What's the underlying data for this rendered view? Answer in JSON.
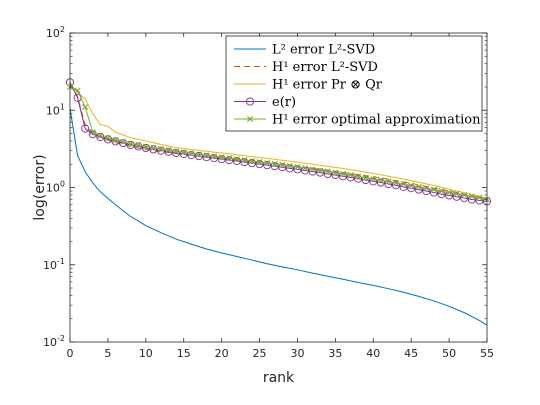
{
  "chart_data": {
    "type": "line",
    "xlabel": "rank",
    "ylabel": "log(error)",
    "xlim": [
      0,
      55
    ],
    "ylim": [
      0.01,
      100
    ],
    "yscale": "log",
    "grid": false,
    "legend_position": "top-right",
    "x_ticks": [
      "0",
      "5",
      "10",
      "15",
      "20",
      "25",
      "30",
      "35",
      "40",
      "45",
      "50",
      "55"
    ],
    "y_ticks": [
      {
        "base": "10",
        "exp": "-2"
      },
      {
        "base": "10",
        "exp": "-1"
      },
      {
        "base": "10",
        "exp": "0"
      },
      {
        "base": "10",
        "exp": "1"
      },
      {
        "base": "10",
        "exp": "2"
      }
    ],
    "series": [
      {
        "name": "L² error L²-SVD",
        "color": "#0072bd",
        "style": "solid",
        "marker": "none",
        "x": [
          0,
          1,
          2,
          3,
          4,
          5,
          6,
          7,
          8,
          9,
          10,
          12,
          14,
          16,
          18,
          20,
          22,
          24,
          26,
          28,
          30,
          32,
          34,
          36,
          38,
          40,
          42,
          44,
          46,
          48,
          50,
          52,
          54,
          55
        ],
        "y": [
          10.5,
          2.6,
          1.6,
          1.15,
          0.88,
          0.72,
          0.6,
          0.5,
          0.42,
          0.37,
          0.32,
          0.26,
          0.215,
          0.185,
          0.16,
          0.142,
          0.128,
          0.115,
          0.103,
          0.094,
          0.086,
          0.078,
          0.071,
          0.065,
          0.059,
          0.054,
          0.049,
          0.044,
          0.039,
          0.034,
          0.029,
          0.024,
          0.019,
          0.0165
        ]
      },
      {
        "name": "H¹ error L²-SVD",
        "color": "#d95319",
        "style": "dashed",
        "marker": "none",
        "x": [
          0,
          1,
          2,
          3,
          4,
          5,
          6,
          7,
          8,
          9,
          10,
          12,
          14,
          16,
          18,
          20,
          22,
          24,
          26,
          28,
          30,
          32,
          34,
          36,
          38,
          40,
          42,
          44,
          46,
          48,
          50,
          52,
          54,
          55
        ],
        "y": [
          22,
          15,
          6.5,
          5.0,
          4.5,
          4.1,
          3.8,
          3.6,
          3.4,
          3.25,
          3.1,
          2.9,
          2.75,
          2.62,
          2.5,
          2.38,
          2.27,
          2.17,
          2.07,
          1.97,
          1.87,
          1.77,
          1.67,
          1.57,
          1.47,
          1.38,
          1.28,
          1.18,
          1.08,
          0.98,
          0.9,
          0.82,
          0.74,
          0.7
        ]
      },
      {
        "name": "H¹ error Pr ⊗ Qr",
        "color": "#edb120",
        "style": "solid",
        "marker": "none",
        "x": [
          0,
          1,
          2,
          3,
          4,
          5,
          6,
          7,
          8,
          9,
          10,
          12,
          14,
          16,
          18,
          20,
          22,
          24,
          26,
          28,
          30,
          32,
          34,
          36,
          38,
          40,
          42,
          44,
          46,
          48,
          50,
          52,
          54,
          55
        ],
        "y": [
          22,
          17,
          14,
          9.0,
          6.5,
          6.2,
          5.2,
          4.8,
          4.4,
          4.2,
          4.0,
          3.6,
          3.3,
          3.1,
          2.95,
          2.8,
          2.65,
          2.5,
          2.38,
          2.25,
          2.12,
          2.0,
          1.88,
          1.76,
          1.64,
          1.52,
          1.4,
          1.29,
          1.17,
          1.06,
          0.95,
          0.86,
          0.77,
          0.72
        ]
      },
      {
        "name": "e(r)",
        "color": "#7e2f8e",
        "style": "solid",
        "marker": "circle",
        "x": [
          0,
          1,
          2,
          3,
          4,
          5,
          6,
          7,
          8,
          9,
          10,
          11,
          12,
          13,
          14,
          15,
          16,
          17,
          18,
          19,
          20,
          21,
          22,
          23,
          24,
          25,
          26,
          27,
          28,
          29,
          30,
          31,
          32,
          33,
          34,
          35,
          36,
          37,
          38,
          39,
          40,
          41,
          42,
          43,
          44,
          45,
          46,
          47,
          48,
          49,
          50,
          51,
          52,
          53,
          54,
          55
        ],
        "y": [
          23,
          14.5,
          5.8,
          4.9,
          4.5,
          4.2,
          3.95,
          3.75,
          3.55,
          3.4,
          3.25,
          3.12,
          3.0,
          2.9,
          2.8,
          2.72,
          2.63,
          2.55,
          2.47,
          2.4,
          2.33,
          2.26,
          2.2,
          2.13,
          2.07,
          2.01,
          1.95,
          1.89,
          1.83,
          1.77,
          1.72,
          1.66,
          1.61,
          1.56,
          1.5,
          1.45,
          1.4,
          1.35,
          1.3,
          1.25,
          1.2,
          1.16,
          1.11,
          1.07,
          1.02,
          0.98,
          0.94,
          0.9,
          0.86,
          0.82,
          0.79,
          0.76,
          0.73,
          0.7,
          0.68,
          0.66
        ]
      },
      {
        "name": "H¹ error optimal approximation",
        "color": "#77ac30",
        "style": "solid",
        "marker": "x",
        "x": [
          0,
          1,
          2,
          3,
          4,
          5,
          6,
          7,
          8,
          9,
          10,
          11,
          12,
          13,
          14,
          15,
          16,
          17,
          18,
          19,
          20,
          21,
          22,
          23,
          24,
          25,
          26,
          27,
          28,
          29,
          30,
          31,
          32,
          33,
          34,
          35,
          36,
          37,
          38,
          39,
          40,
          41,
          42,
          43,
          44,
          45,
          46,
          47,
          48,
          49,
          50,
          51,
          52,
          53,
          54,
          55
        ],
        "y": [
          20,
          18,
          11,
          5.2,
          4.7,
          4.35,
          4.1,
          3.9,
          3.7,
          3.55,
          3.4,
          3.27,
          3.15,
          3.05,
          2.95,
          2.86,
          2.77,
          2.69,
          2.61,
          2.54,
          2.47,
          2.4,
          2.33,
          2.27,
          2.2,
          2.14,
          2.08,
          2.02,
          1.96,
          1.9,
          1.84,
          1.78,
          1.72,
          1.66,
          1.61,
          1.55,
          1.5,
          1.45,
          1.39,
          1.34,
          1.29,
          1.24,
          1.2,
          1.15,
          1.11,
          1.06,
          1.02,
          0.98,
          0.94,
          0.9,
          0.86,
          0.83,
          0.8,
          0.77,
          0.74,
          0.7
        ]
      }
    ]
  }
}
